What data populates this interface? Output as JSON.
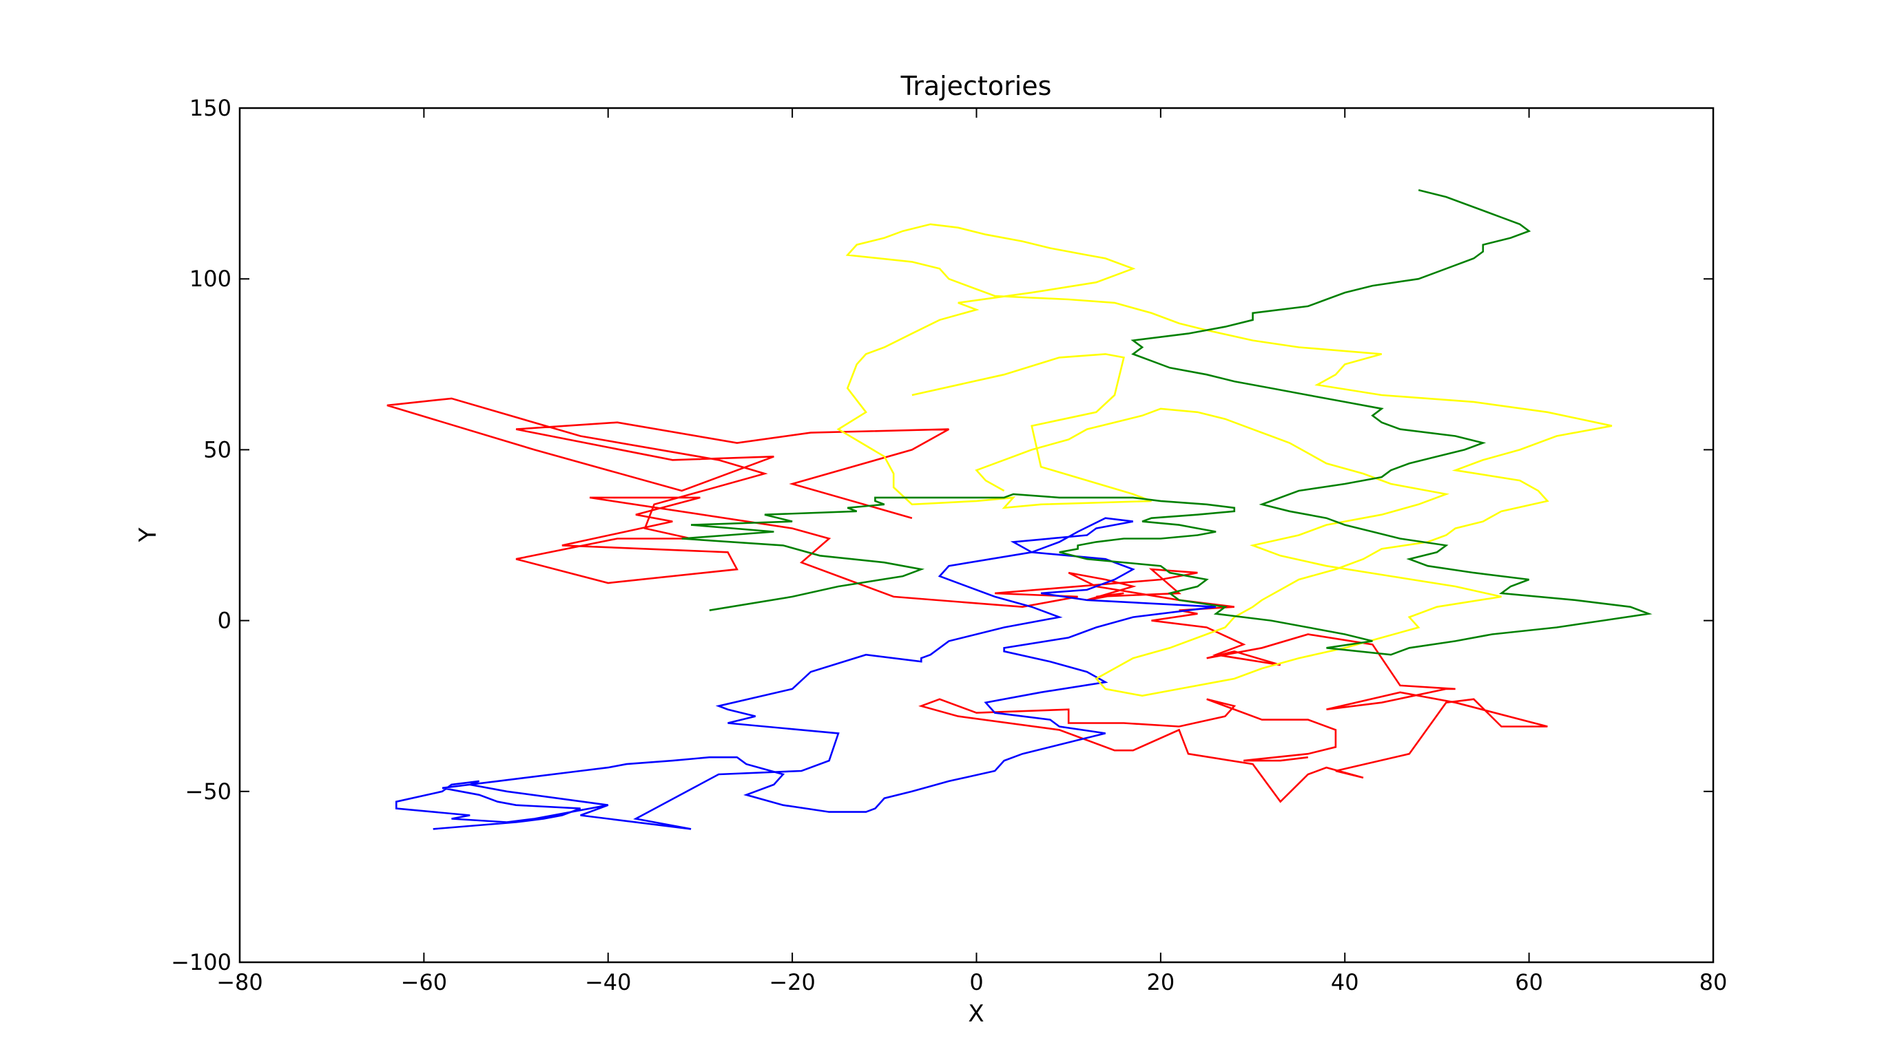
{
  "chart_data": {
    "type": "line",
    "title": "Trajectories",
    "xlabel": "X",
    "ylabel": "Y",
    "xlim": [
      -80,
      80
    ],
    "ylim": [
      -100,
      150
    ],
    "xticks": [
      -80,
      -60,
      -40,
      -20,
      0,
      20,
      40,
      60,
      80
    ],
    "yticks": [
      -100,
      -50,
      0,
      50,
      100,
      150
    ],
    "xtick_labels": [
      "−80",
      "−60",
      "−40",
      "−20",
      "0",
      "20",
      "40",
      "60",
      "80"
    ],
    "ytick_labels": [
      "−100",
      "−50",
      "0",
      "50",
      "100",
      "150"
    ],
    "grid": false,
    "legend": "none",
    "series": [
      {
        "color": "#ff0000",
        "x": [
          -7,
          -20,
          -7,
          -3,
          -18,
          -26,
          -39,
          -50,
          -33,
          -22,
          -32,
          -48,
          -64,
          -57,
          -43,
          -28,
          -23,
          -35,
          -36,
          -31,
          -39,
          -50,
          -40,
          -26,
          -27,
          -45,
          -33,
          -37,
          -30,
          -42,
          -20,
          -16,
          -19,
          -14,
          -9,
          5,
          11,
          2,
          20,
          24,
          19,
          22,
          13,
          16,
          12,
          17,
          14,
          10,
          13,
          22,
          28,
          22,
          24,
          19,
          25,
          29,
          26,
          33,
          28,
          25,
          31,
          36,
          43,
          46,
          52,
          51,
          44,
          38,
          46,
          52,
          62,
          57,
          54,
          51,
          47,
          39,
          42,
          38,
          36,
          33,
          30,
          23,
          22,
          17,
          15,
          9,
          -2,
          -6,
          -4,
          0,
          10,
          10,
          16,
          22,
          27,
          28,
          25,
          31,
          36,
          39,
          39,
          36,
          29,
          33,
          36
        ],
        "y": [
          30,
          40,
          50,
          56,
          55,
          52,
          58,
          56,
          47,
          48,
          38,
          50,
          63,
          65,
          54,
          47,
          43,
          34,
          27,
          24,
          24,
          18,
          11,
          15,
          20,
          22,
          29,
          31,
          36,
          36,
          27,
          24,
          17,
          12,
          7,
          4,
          7,
          8,
          12,
          14,
          15,
          8,
          7,
          8,
          6,
          10,
          12,
          14,
          10,
          6,
          4,
          3,
          2,
          0,
          -2,
          -7,
          -10,
          -13,
          -9,
          -11,
          -8,
          -4,
          -7,
          -19,
          -20,
          -20,
          -24,
          -26,
          -21,
          -24,
          -31,
          -31,
          -23,
          -24,
          -39,
          -44,
          -46,
          -43,
          -45,
          -53,
          -42,
          -39,
          -32,
          -38,
          -38,
          -32,
          -28,
          -25,
          -23,
          -27,
          -26,
          -30,
          -30,
          -31,
          -28,
          -25,
          -23,
          -29,
          -29,
          -32,
          -37,
          -39,
          -41,
          -41,
          -40
        ]
      },
      {
        "color": "#0000ff",
        "x": [
          -40,
          -48,
          -51,
          -57,
          -55,
          -63,
          -63,
          -58,
          -57,
          -54,
          -55,
          -51,
          -40,
          -42,
          -43,
          -31,
          -37,
          -28,
          -19,
          -16,
          -15,
          -27,
          -24,
          -27,
          -28,
          -20,
          -18,
          -12,
          -6,
          -6,
          -5,
          -3,
          3,
          9,
          6,
          2,
          -4,
          -3,
          6,
          4,
          12,
          13,
          17,
          14,
          11,
          9,
          6,
          14,
          17,
          15,
          12,
          7,
          12,
          26,
          17,
          13,
          10,
          3,
          3,
          8,
          12,
          14,
          7,
          1,
          2,
          8,
          9,
          14,
          11,
          8,
          5,
          3,
          2,
          -3,
          -7,
          -10,
          -11,
          -12,
          -16,
          -21,
          -25,
          -22,
          -21,
          -25,
          -26,
          -29,
          -33,
          -38,
          -40,
          -43,
          -49,
          -52,
          -58,
          -54,
          -52,
          -50,
          -43,
          -45,
          -47,
          -50,
          -59
        ],
        "y": [
          -54,
          -58,
          -59,
          -58,
          -57,
          -55,
          -53,
          -50,
          -48,
          -47,
          -48,
          -50,
          -54,
          -56,
          -57,
          -61,
          -58,
          -45,
          -44,
          -41,
          -33,
          -30,
          -28,
          -26,
          -25,
          -20,
          -15,
          -10,
          -12,
          -11,
          -10,
          -6,
          -2,
          1,
          4,
          7,
          13,
          16,
          20,
          23,
          25,
          27,
          29,
          30,
          26,
          23,
          20,
          18,
          15,
          12,
          9,
          8,
          6,
          4,
          1,
          -2,
          -5,
          -8,
          -9,
          -12,
          -15,
          -18,
          -21,
          -24,
          -27,
          -29,
          -31,
          -33,
          -35,
          -37,
          -39,
          -41,
          -44,
          -47,
          -50,
          -52,
          -55,
          -56,
          -56,
          -54,
          -51,
          -48,
          -45,
          -42,
          -40,
          -40,
          -41,
          -42,
          -43,
          -44,
          -46,
          -47,
          -49,
          -51,
          -53,
          -54,
          -55,
          -57,
          -58,
          -59,
          -61
        ],
        "note": ""
      },
      {
        "color": "#ffff00",
        "x": [
          -7,
          3,
          9,
          14,
          16,
          15,
          13,
          6,
          7,
          17,
          19,
          7,
          3,
          4,
          0,
          -7,
          -9,
          -9,
          -10,
          -15,
          -12,
          -14,
          -13,
          -12,
          -10,
          -7,
          -4,
          0,
          -2,
          6,
          13,
          17,
          14,
          12,
          8,
          5,
          1,
          -2,
          -5,
          -8,
          -10,
          -13,
          -14,
          -7,
          -4,
          -3,
          0,
          2,
          10,
          15,
          19,
          22,
          25,
          30,
          35,
          44,
          40,
          39,
          37,
          44,
          54,
          62,
          69,
          63,
          59,
          55,
          52,
          59,
          61,
          62,
          57,
          55,
          52,
          51,
          49,
          44,
          42,
          39,
          35,
          33,
          31,
          30,
          28,
          27,
          24,
          21,
          17,
          15,
          13,
          14,
          18,
          22,
          28,
          31,
          35,
          40,
          44,
          48,
          47,
          50,
          57,
          52,
          45,
          38,
          33,
          30,
          35,
          38,
          44,
          48,
          51,
          45,
          42,
          38,
          36,
          34,
          31,
          29,
          27,
          24,
          20,
          18,
          15,
          12,
          10,
          6,
          3,
          0,
          1,
          3
        ],
        "y": [
          66,
          72,
          77,
          78,
          77,
          66,
          61,
          57,
          45,
          37,
          35,
          34,
          33,
          36,
          35,
          34,
          39,
          43,
          48,
          56,
          61,
          68,
          75,
          78,
          80,
          84,
          88,
          91,
          93,
          96,
          99,
          103,
          106,
          107,
          109,
          111,
          113,
          115,
          116,
          114,
          112,
          110,
          107,
          105,
          103,
          100,
          97,
          95,
          94,
          93,
          90,
          87,
          85,
          82,
          80,
          78,
          75,
          72,
          69,
          66,
          64,
          61,
          57,
          54,
          50,
          47,
          44,
          41,
          38,
          35,
          32,
          29,
          27,
          25,
          23,
          21,
          18,
          15,
          12,
          9,
          6,
          4,
          1,
          -2,
          -5,
          -8,
          -11,
          -14,
          -17,
          -20,
          -22,
          -20,
          -17,
          -14,
          -11,
          -8,
          -5,
          -2,
          1,
          4,
          7,
          10,
          13,
          16,
          19,
          22,
          25,
          28,
          31,
          34,
          37,
          40,
          43,
          46,
          49,
          52,
          55,
          57,
          59,
          61,
          62,
          60,
          58,
          56,
          53,
          50,
          47,
          44,
          41,
          38
        ],
        "note": ""
      },
      {
        "color": "#008000",
        "x": [
          -29,
          -20,
          -15,
          -8,
          -6,
          -10,
          -17,
          -21,
          -32,
          -22,
          -31,
          -20,
          -23,
          -13,
          -14,
          -10,
          -11,
          -11,
          0,
          3,
          4,
          9,
          10,
          17,
          20,
          25,
          28,
          28,
          24,
          19,
          18,
          22,
          24,
          26,
          24,
          20,
          16,
          13,
          11,
          11,
          9,
          12,
          20,
          21,
          25,
          24,
          21,
          22,
          27,
          26,
          32,
          36,
          40,
          43,
          38,
          45,
          47,
          52,
          56,
          63,
          68,
          73,
          71,
          65,
          57,
          58,
          60,
          54,
          49,
          47,
          50,
          51,
          46,
          43,
          40,
          38,
          34,
          31,
          33,
          35,
          40,
          44,
          45,
          47,
          50,
          53,
          55,
          52,
          46,
          44,
          43,
          44,
          40,
          36,
          32,
          28,
          25,
          21,
          19,
          17,
          18,
          17,
          23,
          27,
          30,
          30,
          36,
          38,
          40,
          43,
          48,
          50,
          52,
          54,
          55,
          55,
          58,
          60,
          59,
          57,
          55,
          53,
          51,
          48
        ],
        "y": [
          3,
          7,
          10,
          13,
          15,
          17,
          19,
          22,
          24,
          26,
          28,
          29,
          31,
          32,
          33,
          34,
          35,
          36,
          36,
          36,
          37,
          36,
          36,
          36,
          35,
          34,
          33,
          32,
          31,
          30,
          29,
          28,
          27,
          26,
          25,
          24,
          24,
          23,
          22,
          21,
          20,
          18,
          16,
          14,
          12,
          10,
          8,
          6,
          4,
          2,
          0,
          -2,
          -4,
          -6,
          -8,
          -10,
          -8,
          -6,
          -4,
          -2,
          0,
          2,
          4,
          6,
          8,
          10,
          12,
          14,
          16,
          18,
          20,
          22,
          24,
          26,
          28,
          30,
          32,
          34,
          36,
          38,
          40,
          42,
          44,
          46,
          48,
          50,
          52,
          54,
          56,
          58,
          60,
          62,
          64,
          66,
          68,
          70,
          72,
          74,
          76,
          78,
          80,
          82,
          84,
          86,
          88,
          90,
          92,
          94,
          96,
          98,
          100,
          102,
          104,
          106,
          108,
          110,
          112,
          114,
          116,
          118,
          120,
          122,
          124,
          126
        ],
        "note": ""
      }
    ]
  }
}
